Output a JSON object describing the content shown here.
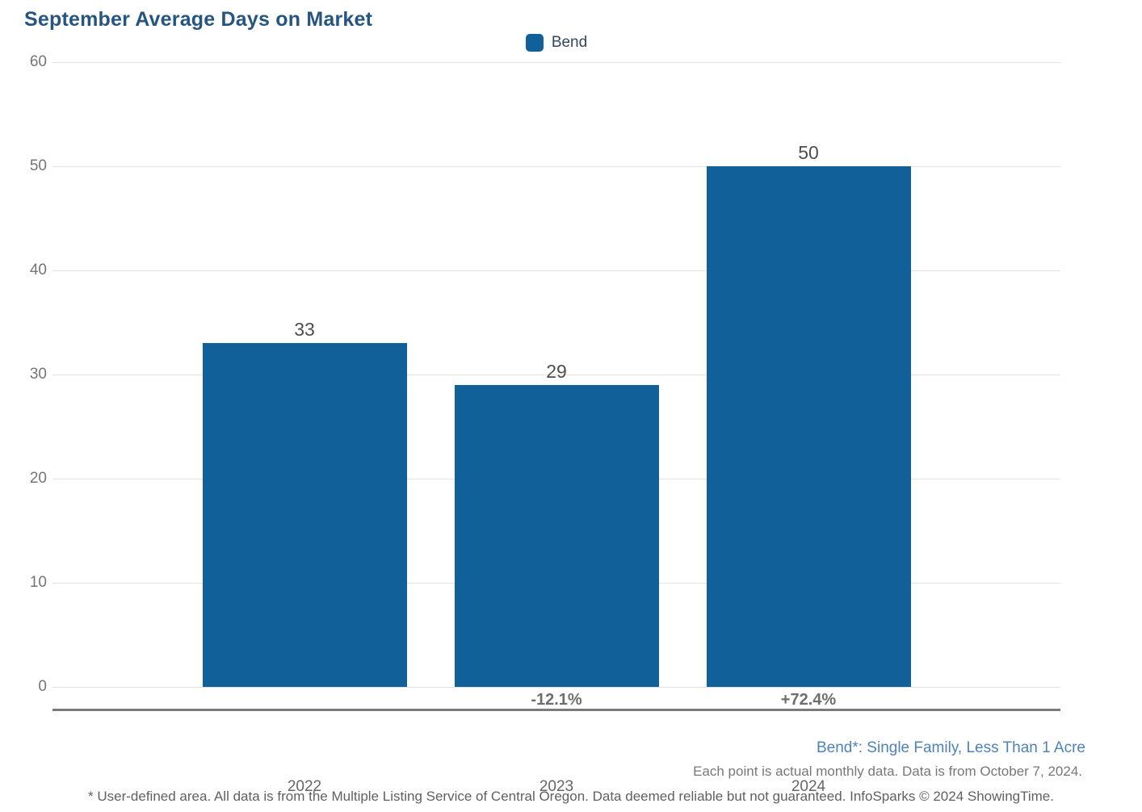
{
  "chart": {
    "title": "September Average Days on Market",
    "legend": [
      {
        "label": "Bend",
        "color": "#11609a"
      }
    ]
  },
  "chart_data": {
    "type": "bar",
    "title": "September Average Days on Market",
    "categories": [
      "2022",
      "2023",
      "2024"
    ],
    "series": [
      {
        "name": "Bend",
        "values": [
          33,
          29,
          50
        ]
      }
    ],
    "pct_change_labels": [
      "",
      "-12.1%",
      "+72.4%"
    ],
    "xlabel": "",
    "ylabel": "",
    "ylim": [
      0,
      60
    ],
    "ytick_step": 10,
    "yticks": [
      0,
      10,
      20,
      30,
      40,
      50,
      60
    ],
    "grid": true,
    "legend_position": "top-center",
    "bar_color": "#11609a",
    "gridline_color": "#e2e2e2",
    "axis_line_color": "#7b7b7b"
  },
  "footer": {
    "series_definition": "Bend*: Single Family, Less Than 1 Acre",
    "data_note": "Each point is actual monthly data. Data is from October 7, 2024.",
    "disclaimer": "* User-defined area. All data is from the Multiple Listing Service of Central Oregon. Data deemed reliable but not guaranteed. InfoSparks © 2024 ShowingTime."
  }
}
